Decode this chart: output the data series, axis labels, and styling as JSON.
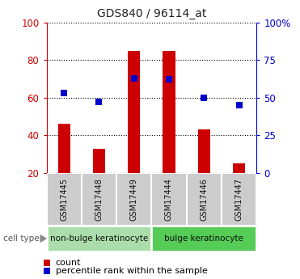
{
  "title": "GDS840 / 96114_at",
  "samples": [
    "GSM17445",
    "GSM17448",
    "GSM17449",
    "GSM17444",
    "GSM17446",
    "GSM17447"
  ],
  "count_values": [
    46,
    33,
    85,
    85,
    43,
    25
  ],
  "percentile_values": [
    53,
    47,
    63,
    62,
    50,
    45
  ],
  "ylim_left": [
    20,
    100
  ],
  "yticks_left": [
    20,
    40,
    60,
    80,
    100
  ],
  "yticks_right_perc": [
    0,
    25,
    50,
    75,
    100
  ],
  "yticklabels_right": [
    "0",
    "25",
    "50",
    "75",
    "100%"
  ],
  "bar_color": "#cc0000",
  "dot_color": "#0000cc",
  "grid_color": "#000000",
  "bar_bottom": 20,
  "groups": [
    {
      "label": "non-bulge keratinocyte",
      "indices": [
        0,
        1,
        2
      ],
      "color": "#aaddaa"
    },
    {
      "label": "bulge keratinocyte",
      "indices": [
        3,
        4,
        5
      ],
      "color": "#55cc55"
    }
  ],
  "legend_count_label": "count",
  "legend_percentile_label": "percentile rank within the sample",
  "cell_type_label": "cell type",
  "left_tick_color": "#cc0000",
  "right_tick_color": "#0000cc",
  "tick_area_bg": "#cccccc",
  "figsize": [
    3.71,
    3.45
  ],
  "dpi": 100
}
